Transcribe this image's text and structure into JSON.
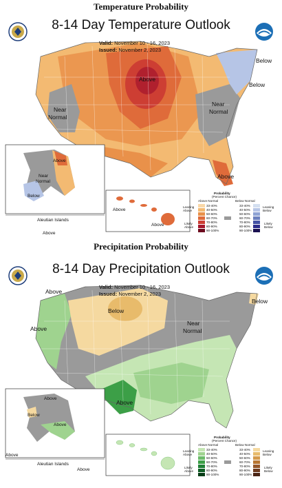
{
  "headers": {
    "temperature": "Temperature Probability",
    "precipitation": "Precipitation Probability"
  },
  "temperature": {
    "title": "8-14 Day Temperature Outlook",
    "valid_label": "Valid:",
    "valid_value": "November 10 - 16, 2023",
    "issued_label": "Issued:",
    "issued_value": "November 2, 2023",
    "labels": {
      "above_north": "Above",
      "near_west_1": "Near",
      "near_west_2": "Normal",
      "near_east_1": "Near",
      "near_east_2": "Normal",
      "below_ne_1": "Below",
      "below_ne_2": "Below",
      "above_fl": "Above",
      "ak_above": "Above",
      "ak_near_1": "Near",
      "ak_near_2": "Normal",
      "ak_below": "Below",
      "aleutian": "Aleutian Islands",
      "aleutian_above": "Above",
      "hi_above_1": "Above",
      "hi_above_2": "Above"
    },
    "legend": {
      "title": "Probability",
      "subtitle": "(Percent Chance)",
      "col1_head": "Above Normal",
      "col2_head": "Below Normal",
      "leaning_above_1": "Leaning",
      "leaning_above_2": "Above",
      "likely_above_1": "Likely",
      "likely_above_2": "Above",
      "leaning_below_1": "Leaning",
      "leaning_below_2": "Below",
      "likely_below_1": "Likely",
      "likely_below_2": "Below",
      "ranges": [
        "33-40%",
        "40-50%",
        "50-60%",
        "60-70%",
        "70-80%",
        "80-90%",
        "90-100%"
      ]
    },
    "colors": {
      "a1": "#f9d8a8",
      "a2": "#f3ba72",
      "a3": "#e9914a",
      "a4": "#df6b3a",
      "a5": "#cd3e33",
      "a6": "#a5172d",
      "a7": "#6c0a1e",
      "b1": "#d3dff0",
      "b2": "#b6c5e6",
      "b3": "#8ea3d4",
      "b4": "#6b80bf",
      "b5": "#4553a5",
      "b6": "#2d2d8b",
      "b7": "#1a1050",
      "normal": "#9a9a9a"
    }
  },
  "precipitation": {
    "title": "8-14 Day Precipitation Outlook",
    "valid_label": "Valid:",
    "valid_value": "November 10 - 16, 2023",
    "issued_label": "Issued:",
    "issued_value": "November 2, 2023",
    "labels": {
      "above_nw": "Above",
      "above_w": "Above",
      "below_n": "Below",
      "near_1": "Near",
      "near_2": "Normal",
      "below_ne": "Below",
      "above_tx": "Above",
      "ak_above_1": "Above",
      "ak_below": "Below",
      "ak_above_2": "Above",
      "ak_above_3": "Above",
      "aleutian": "Aleutian Islands",
      "aleutian_above": "Above"
    },
    "legend": {
      "title": "Probability",
      "subtitle": "(Percent Chance)",
      "col1_head": "Above Normal",
      "col2_head": "Below Normal",
      "leaning_above_1": "Leaning",
      "leaning_above_2": "Above",
      "likely_above_1": "Likely",
      "likely_above_2": "Above",
      "leaning_below_1": "Leaning",
      "leaning_below_2": "Below",
      "likely_below_1": "Likely",
      "likely_below_2": "Below",
      "ranges": [
        "33-40%",
        "40-50%",
        "50-60%",
        "60-70%",
        "70-80%",
        "80-90%",
        "90-100%"
      ]
    },
    "colors": {
      "a1": "#c5e6b4",
      "a2": "#9fd38f",
      "a3": "#6cbb6a",
      "a4": "#3c9f47",
      "a5": "#1f7f35",
      "a6": "#0f5e25",
      "a7": "#073d17",
      "b1": "#f5d9a0",
      "b2": "#e8bb6b",
      "b3": "#d49a4b",
      "b4": "#b87733",
      "b5": "#94562a",
      "b6": "#6e3b1f",
      "b7": "#4a2414",
      "normal": "#9a9a9a"
    }
  }
}
